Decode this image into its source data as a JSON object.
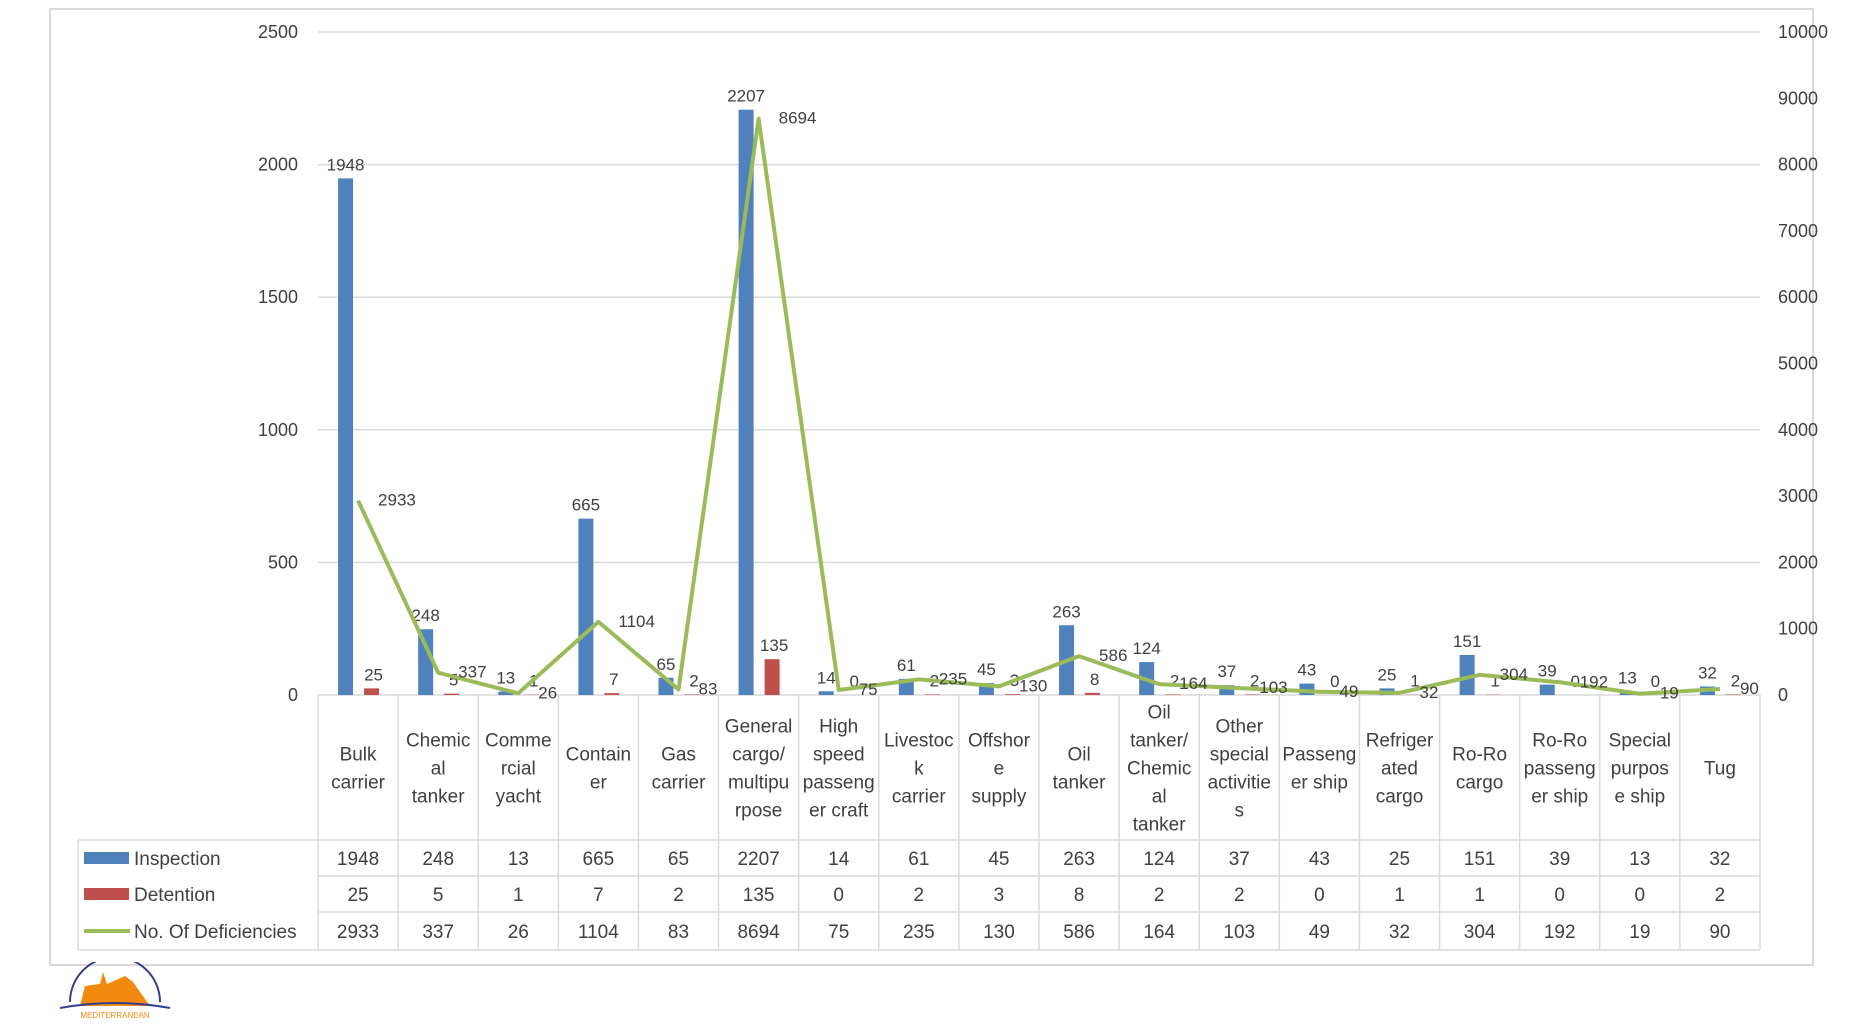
{
  "chart_data": {
    "type": "bar",
    "title": "",
    "categories": [
      [
        "Bulk",
        "carrier"
      ],
      [
        "Chemic",
        "al",
        "tanker"
      ],
      [
        "Comme",
        "rcial",
        "yacht"
      ],
      [
        "Contain",
        "er"
      ],
      [
        "Gas",
        "carrier"
      ],
      [
        "General",
        "cargo/",
        "multipu",
        "rpose"
      ],
      [
        "High",
        "speed",
        "passeng",
        "er craft"
      ],
      [
        "Livestoc",
        "k",
        "carrier"
      ],
      [
        "Offshor",
        "e",
        "supply"
      ],
      [
        "Oil",
        "tanker"
      ],
      [
        "Oil",
        "tanker/",
        "Chemic",
        "al",
        "tanker"
      ],
      [
        "Other",
        "special",
        "activitie",
        "s"
      ],
      [
        "Passeng",
        "er ship"
      ],
      [
        "Refriger",
        "ated",
        "cargo"
      ],
      [
        "Ro-Ro",
        "cargo"
      ],
      [
        "Ro-Ro",
        "passeng",
        "er ship"
      ],
      [
        "Special",
        "purpos",
        "e ship"
      ],
      [
        "Tug"
      ]
    ],
    "series": [
      {
        "name": "Inspection",
        "type": "bar",
        "axis": "left",
        "color": "#4f81bd",
        "values": [
          1948,
          248,
          13,
          665,
          65,
          2207,
          14,
          61,
          45,
          263,
          124,
          37,
          43,
          25,
          151,
          39,
          13,
          32
        ]
      },
      {
        "name": "Detention",
        "type": "bar",
        "axis": "left",
        "color": "#c0504d",
        "values": [
          25,
          5,
          1,
          7,
          2,
          135,
          0,
          2,
          3,
          8,
          2,
          2,
          0,
          1,
          1,
          0,
          0,
          2
        ]
      },
      {
        "name": "No. Of Deficiencies",
        "type": "line",
        "axis": "right",
        "color": "#9bbb59",
        "values": [
          2933,
          337,
          26,
          1104,
          83,
          8694,
          75,
          235,
          130,
          586,
          164,
          103,
          49,
          32,
          304,
          192,
          19,
          90
        ]
      }
    ],
    "ylim": [
      0,
      2500
    ],
    "y_ticks": [
      "0",
      "500",
      "1000",
      "1500",
      "2000",
      "2500"
    ],
    "y2lim": [
      0,
      10000
    ],
    "y2_ticks": [
      "0",
      "1000",
      "2000",
      "3000",
      "4000",
      "5000",
      "6000",
      "7000",
      "8000",
      "9000",
      "10000"
    ],
    "grid": true,
    "legend": "data-table-bottom"
  },
  "logo": {
    "text": "MEDITERRANEAN MOU"
  }
}
